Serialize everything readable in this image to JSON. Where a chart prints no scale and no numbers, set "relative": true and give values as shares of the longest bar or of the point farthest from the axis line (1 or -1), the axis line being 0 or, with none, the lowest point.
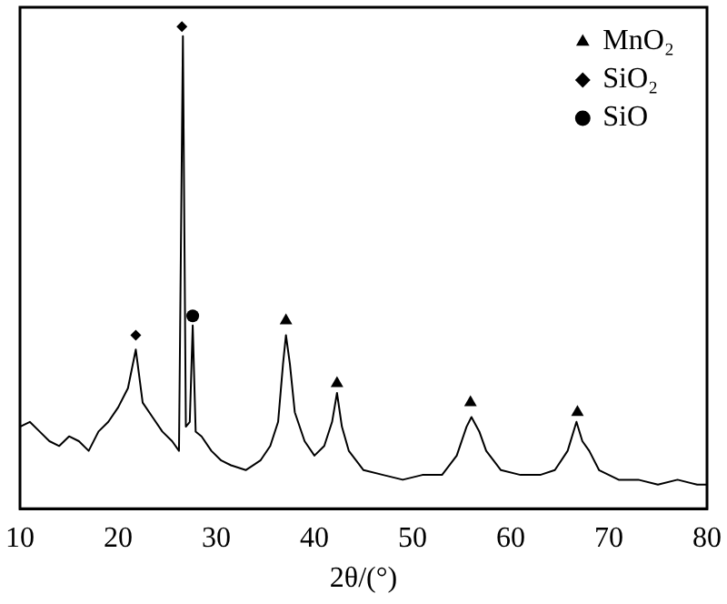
{
  "chart_data": {
    "type": "line",
    "xlabel": "2θ/(°)",
    "relative": true,
    "xlim": [
      10,
      80
    ],
    "xticks": [
      10,
      20,
      30,
      40,
      50,
      60,
      70,
      80
    ],
    "grid": false,
    "legend": "top right",
    "x": [
      10,
      11,
      12,
      13,
      14,
      15,
      16,
      17,
      18,
      19,
      20,
      21,
      21.8,
      22.5,
      23.5,
      24.5,
      25.5,
      26.2,
      26.6,
      26.9,
      27.3,
      27.6,
      27.9,
      28.5,
      29.5,
      30.5,
      31.5,
      33,
      34.5,
      35.5,
      36.3,
      36.8,
      37.1,
      37.5,
      38,
      39,
      40,
      41,
      41.8,
      42.3,
      42.8,
      43.5,
      45,
      47,
      49,
      51,
      53,
      54.5,
      55.5,
      56,
      56.8,
      57.5,
      59,
      61,
      63,
      64.5,
      65.8,
      66.7,
      67.3,
      68,
      69,
      71,
      73,
      75,
      77,
      79,
      80
    ],
    "series": [
      {
        "color": "#000000",
        "line_style": "solid",
        "marker": "none",
        "values": [
          0.17,
          0.18,
          0.16,
          0.14,
          0.13,
          0.15,
          0.14,
          0.12,
          0.16,
          0.18,
          0.21,
          0.25,
          0.33,
          0.22,
          0.19,
          0.16,
          0.14,
          0.12,
          0.98,
          0.17,
          0.18,
          0.38,
          0.16,
          0.15,
          0.12,
          0.1,
          0.09,
          0.08,
          0.1,
          0.13,
          0.18,
          0.3,
          0.36,
          0.3,
          0.2,
          0.14,
          0.11,
          0.13,
          0.18,
          0.24,
          0.17,
          0.12,
          0.08,
          0.07,
          0.06,
          0.07,
          0.07,
          0.11,
          0.17,
          0.19,
          0.16,
          0.12,
          0.08,
          0.07,
          0.07,
          0.08,
          0.12,
          0.18,
          0.14,
          0.12,
          0.08,
          0.06,
          0.06,
          0.05,
          0.06,
          0.05,
          0.05
        ]
      },
      {
        "type": "scatter",
        "name": "MnO₂",
        "color": "#000000",
        "marker": "triangle",
        "x": [
          37.1,
          42.3,
          55.9,
          66.8
        ],
        "values": [
          0.39,
          0.26,
          0.22,
          0.2
        ]
      },
      {
        "type": "scatter",
        "name": "SiO₂",
        "color": "#000000",
        "marker": "diamond",
        "x": [
          21.8,
          26.5
        ],
        "values": [
          0.36,
          1
        ]
      },
      {
        "type": "scatter",
        "name": "SiO",
        "color": "#000000",
        "marker": "circle",
        "x": [
          27.6
        ],
        "values": [
          0.4
        ]
      }
    ]
  }
}
